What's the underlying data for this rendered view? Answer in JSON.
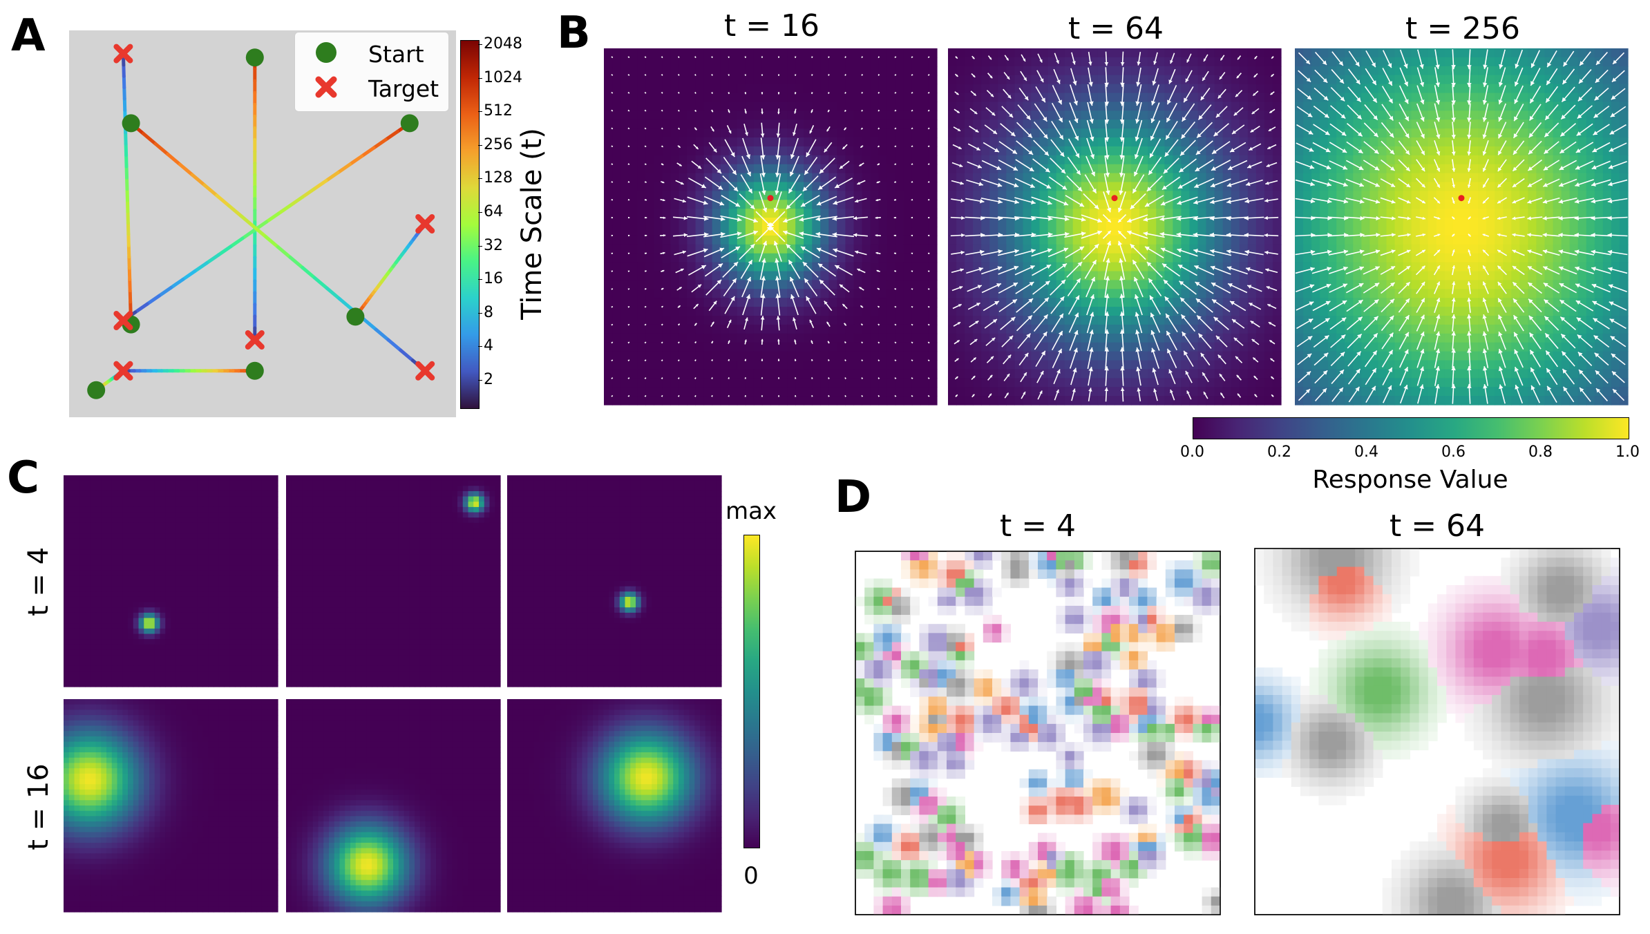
{
  "panels": {
    "a": {
      "letter": "A"
    },
    "b": {
      "letter": "B"
    },
    "c": {
      "letter": "C"
    },
    "d": {
      "letter": "D"
    }
  },
  "chart_data": [
    {
      "type": "line",
      "panel": "A",
      "legend": {
        "placement": "top-right",
        "entries": [
          {
            "label": "Start",
            "marker": "circle",
            "color": "#2e7d1e"
          },
          {
            "label": "Target",
            "marker": "x",
            "color": "#e8382d"
          }
        ]
      },
      "colorbar": {
        "label": "Time Scale (t)",
        "ticks": [
          "2048",
          "1024",
          "512",
          "256",
          "128",
          "64",
          "32",
          "16",
          "8",
          "4",
          "2"
        ],
        "colormap": "turbo"
      },
      "background": "#d3d3d3",
      "trajectories": [
        {
          "start": [
            0.16,
            0.24
          ],
          "target": [
            0.14,
            0.94
          ]
        },
        {
          "start": [
            0.48,
            0.93
          ],
          "target": [
            0.48,
            0.2
          ]
        },
        {
          "start": [
            0.88,
            0.76
          ],
          "target": [
            0.14,
            0.25
          ]
        },
        {
          "start": [
            0.07,
            0.07
          ],
          "target": [
            0.14,
            0.12
          ]
        },
        {
          "start": [
            0.74,
            0.26
          ],
          "target": [
            0.92,
            0.5
          ]
        },
        {
          "start": [
            0.48,
            0.12
          ],
          "target": [
            0.14,
            0.12
          ]
        },
        {
          "start": [
            0.16,
            0.76
          ],
          "target": [
            0.92,
            0.12
          ]
        }
      ]
    },
    {
      "type": "heatmap",
      "panel": "B",
      "series": [
        {
          "title": "t = 16",
          "sigma": 0.11
        },
        {
          "title": "t = 64",
          "sigma": 0.22
        },
        {
          "title": "t = 256",
          "sigma": 0.44
        }
      ],
      "colorbar": {
        "label": "Response Value",
        "ticks": [
          "0.0",
          "0.2",
          "0.4",
          "0.6",
          "0.8",
          "1.0"
        ],
        "range": [
          0,
          1
        ],
        "colormap": "viridis"
      }
    },
    {
      "type": "heatmap",
      "panel": "C",
      "row_labels": [
        "t = 4",
        "t = 16"
      ],
      "colorbar": {
        "top": "max",
        "bottom": "0",
        "colormap": "viridis"
      },
      "rows": [
        [
          {
            "cx": 0.4,
            "cy": 0.7,
            "sigma": 0.03
          },
          {
            "cx": 0.88,
            "cy": 0.13,
            "sigma": 0.03
          },
          {
            "cx": 0.57,
            "cy": 0.6,
            "sigma": 0.03
          }
        ],
        [
          {
            "cx": 0.12,
            "cy": 0.38,
            "sigma": 0.16
          },
          {
            "cx": 0.38,
            "cy": 0.78,
            "sigma": 0.13
          },
          {
            "cx": 0.65,
            "cy": 0.37,
            "sigma": 0.15
          }
        ]
      ]
    },
    {
      "type": "heatmap",
      "panel": "D",
      "series": [
        {
          "title": "t = 4",
          "style": "fine"
        },
        {
          "title": "t = 64",
          "style": "blurred"
        }
      ],
      "palette": [
        "#e8604c",
        "#f39a3c",
        "#55b24f",
        "#4b8fcd",
        "#8a7dc0",
        "#d74fa8",
        "#8c8c8c"
      ]
    }
  ]
}
